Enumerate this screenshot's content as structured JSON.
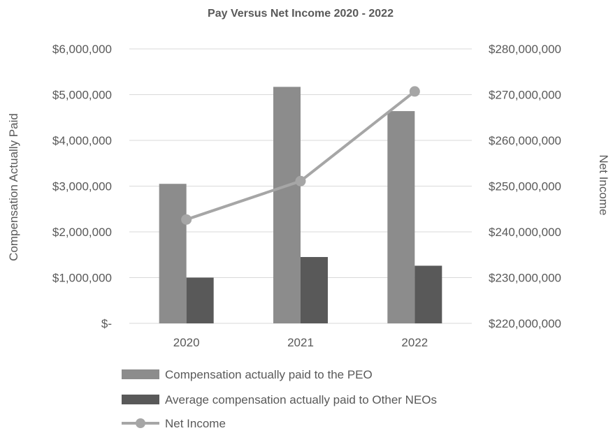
{
  "chart_data": {
    "type": "bar",
    "title": "Pay Versus Net Income 2020 - 2022",
    "categories": [
      "2020",
      "2021",
      "2022"
    ],
    "y_left": {
      "label": "Compensation Actually Paid",
      "ylim": [
        0,
        6000000
      ],
      "ticks": [
        0,
        1000000,
        2000000,
        3000000,
        4000000,
        5000000,
        6000000
      ],
      "tick_labels": [
        "$-",
        "$1,000,000",
        "$2,000,000",
        "$3,000,000",
        "$4,000,000",
        "$5,000,000",
        "$6,000,000"
      ]
    },
    "y_right": {
      "label": "Net Income",
      "ylim": [
        220000000,
        280000000
      ],
      "ticks": [
        220000000,
        230000000,
        240000000,
        250000000,
        260000000,
        270000000,
        280000000
      ],
      "tick_labels": [
        "$220,000,000",
        "$230,000,000",
        "$240,000,000",
        "$250,000,000",
        "$260,000,000",
        "$270,000,000",
        "$280,000,000"
      ]
    },
    "series": [
      {
        "name": "Compensation actually paid to the PEO",
        "type": "bar",
        "axis": "left",
        "color": "#8c8c8c",
        "values": [
          3050000,
          5170000,
          4640000
        ]
      },
      {
        "name": "Average compensation actually paid to Other NEOs",
        "type": "bar",
        "axis": "left",
        "color": "#595959",
        "values": [
          1000000,
          1450000,
          1260000
        ]
      },
      {
        "name": "Net Income",
        "type": "line",
        "axis": "right",
        "color": "#a6a6a6",
        "values": [
          242700000,
          251100000,
          270700000
        ]
      }
    ],
    "grid": true,
    "legend_position": "bottom"
  }
}
